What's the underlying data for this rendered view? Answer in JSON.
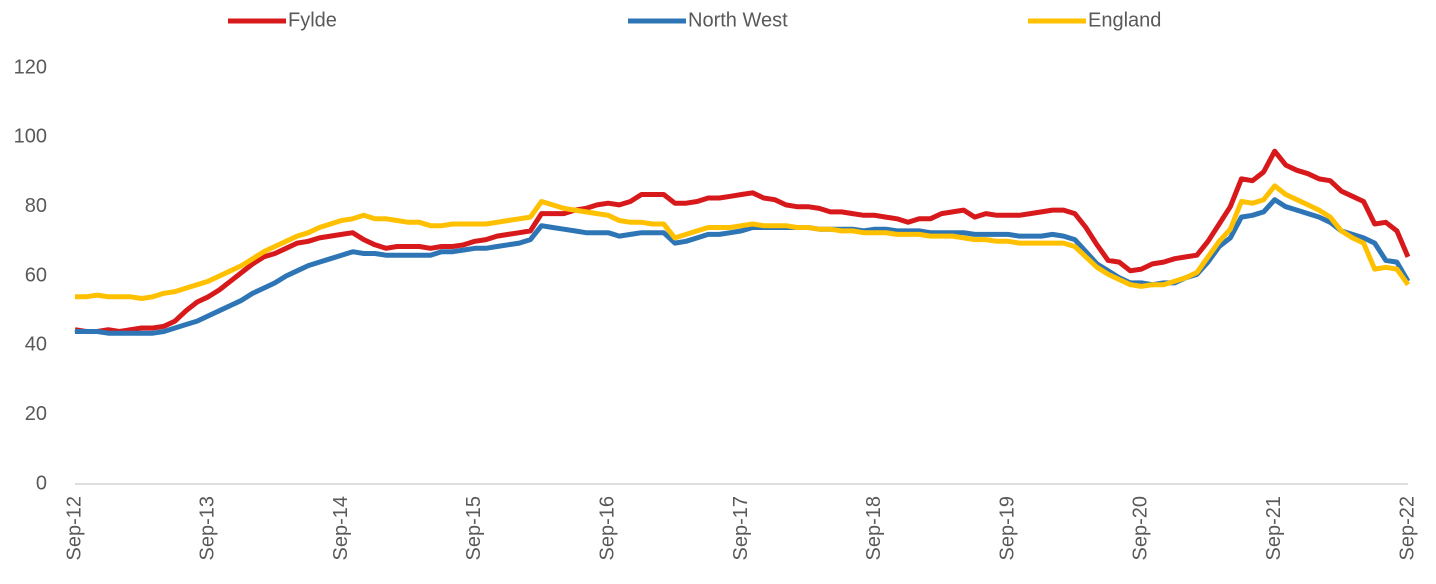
{
  "chart_data": {
    "type": "line",
    "legend": "top",
    "categories": [
      "Sep-12",
      null,
      null,
      null,
      null,
      null,
      null,
      null,
      null,
      null,
      null,
      null,
      "Sep-13",
      null,
      null,
      null,
      null,
      null,
      null,
      null,
      null,
      null,
      null,
      null,
      "Sep-14",
      null,
      null,
      null,
      null,
      null,
      null,
      null,
      null,
      null,
      null,
      null,
      "Sep-15",
      null,
      null,
      null,
      null,
      null,
      null,
      null,
      null,
      null,
      null,
      null,
      "Sep-16",
      null,
      null,
      null,
      null,
      null,
      null,
      null,
      null,
      null,
      null,
      null,
      "Sep-17",
      null,
      null,
      null,
      null,
      null,
      null,
      null,
      null,
      null,
      null,
      null,
      "Sep-18",
      null,
      null,
      null,
      null,
      null,
      null,
      null,
      null,
      null,
      null,
      null,
      "Sep-19",
      null,
      null,
      null,
      null,
      null,
      null,
      null,
      null,
      null,
      null,
      null,
      "Sep-20",
      null,
      null,
      null,
      null,
      null,
      null,
      null,
      null,
      null,
      null,
      null,
      "Sep-21",
      null,
      null,
      null,
      null,
      null,
      null,
      null,
      null,
      null,
      null,
      null,
      "Sep-22"
    ],
    "series": [
      {
        "name": "Fylde",
        "color": "#d7191c",
        "values": [
          44.5,
          44,
          44,
          44.5,
          44,
          44.5,
          45,
          45,
          45.5,
          47,
          50,
          52.5,
          54,
          56,
          58.5,
          61,
          63.5,
          65.5,
          66.5,
          68,
          69.5,
          70,
          71,
          71.5,
          72,
          72.5,
          70.5,
          69,
          68,
          68.5,
          68.5,
          68.5,
          68,
          68.5,
          68.5,
          69,
          70,
          70.5,
          71.5,
          72,
          72.5,
          73,
          78,
          78,
          78,
          79,
          79.5,
          80.5,
          81,
          80.5,
          81.5,
          83.5,
          83.5,
          83.5,
          81,
          81,
          81.5,
          82.5,
          82.5,
          83,
          83.5,
          84,
          82.5,
          82,
          80.5,
          80,
          80,
          79.5,
          78.5,
          78.5,
          78,
          77.5,
          77.5,
          77,
          76.5,
          75.5,
          76.5,
          76.5,
          78,
          78.5,
          79,
          77,
          78,
          77.5,
          77.5,
          77.5,
          78,
          78.5,
          79,
          79,
          78,
          74,
          69,
          64.5,
          64,
          61.5,
          62,
          63.5,
          64,
          65,
          65.5,
          66,
          70,
          75,
          80,
          88,
          87.5,
          90,
          96,
          92,
          90.5,
          89.5,
          88,
          87.5,
          84.5,
          83,
          81.5,
          75,
          75.5,
          73,
          65.5
        ]
      },
      {
        "name": "North West",
        "color": "#2e75b6",
        "values": [
          44,
          44,
          44,
          43.5,
          43.5,
          43.5,
          43.5,
          43.5,
          44,
          45,
          46,
          47,
          48.5,
          50,
          51.5,
          53,
          55,
          56.5,
          58,
          60,
          61.5,
          63,
          64,
          65,
          66,
          67,
          66.5,
          66.5,
          66,
          66,
          66,
          66,
          66,
          67,
          67,
          67.5,
          68,
          68,
          68.5,
          69,
          69.5,
          70.5,
          74.5,
          74,
          73.5,
          73,
          72.5,
          72.5,
          72.5,
          71.5,
          72,
          72.5,
          72.5,
          72.5,
          69.5,
          70,
          71,
          72,
          72,
          72.5,
          73,
          74,
          74,
          74,
          74,
          74,
          74,
          73.5,
          73.5,
          73.5,
          73.5,
          73,
          73.5,
          73.5,
          73,
          73,
          73,
          72.5,
          72.5,
          72.5,
          72.5,
          72,
          72,
          72,
          72,
          71.5,
          71.5,
          71.5,
          72,
          71.5,
          70.5,
          67,
          63.5,
          61.5,
          59.5,
          58,
          58,
          57.5,
          58,
          58,
          59.5,
          60.5,
          64,
          68.5,
          71,
          77,
          77.5,
          78.5,
          82,
          80,
          79,
          78,
          77,
          75.5,
          73,
          72,
          71,
          69.5,
          64.5,
          64,
          58.5
        ]
      },
      {
        "name": "England",
        "color": "#ffc000",
        "values": [
          54,
          54,
          54.5,
          54,
          54,
          54,
          53.5,
          54,
          55,
          55.5,
          56.5,
          57.5,
          58.5,
          60,
          61.5,
          63,
          65,
          67,
          68.5,
          70,
          71.5,
          72.5,
          74,
          75,
          76,
          76.5,
          77.5,
          76.5,
          76.5,
          76,
          75.5,
          75.5,
          74.5,
          74.5,
          75,
          75,
          75,
          75,
          75.5,
          76,
          76.5,
          77,
          81.5,
          80.5,
          79.5,
          79,
          78.5,
          78,
          77.5,
          76,
          75.5,
          75.5,
          75,
          75,
          71,
          72,
          73,
          74,
          74,
          74,
          74.5,
          75,
          74.5,
          74.5,
          74.5,
          74,
          74,
          73.5,
          73.5,
          73,
          73,
          72.5,
          72.5,
          72.5,
          72,
          72,
          72,
          71.5,
          71.5,
          71.5,
          71,
          70.5,
          70.5,
          70,
          70,
          69.5,
          69.5,
          69.5,
          69.5,
          69.5,
          68.5,
          65.5,
          62.5,
          60.5,
          59,
          57.5,
          57,
          57.5,
          57.5,
          58.5,
          59.5,
          61,
          65.5,
          70,
          73.5,
          81.5,
          81,
          82,
          86,
          83.5,
          82,
          80.5,
          79,
          77,
          73,
          71,
          69.5,
          62,
          62.5,
          62,
          57.5
        ]
      }
    ],
    "ylim": [
      0,
      120
    ],
    "yticks": [
      0,
      20,
      40,
      60,
      80,
      100,
      120
    ],
    "grid": false
  }
}
